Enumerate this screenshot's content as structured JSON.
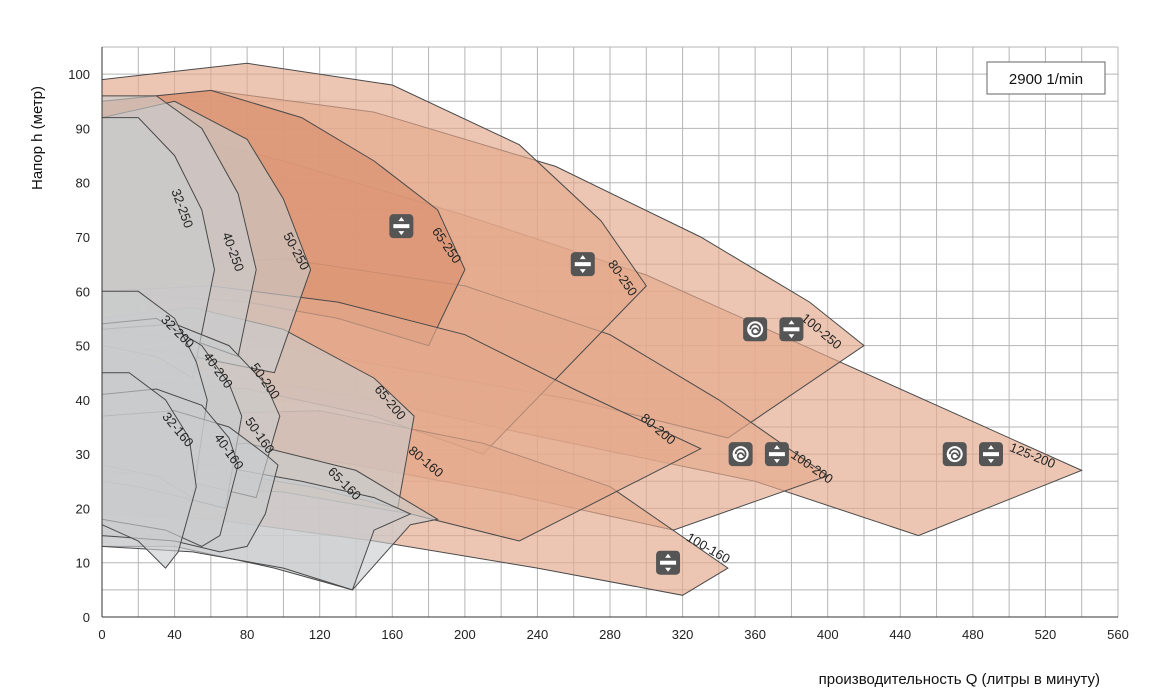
{
  "chart_data": {
    "type": "area",
    "xlabel": "производительность Q (литры в минуту)",
    "ylabel": "Напор h (метр)",
    "xlim": [
      0,
      560
    ],
    "ylim": [
      0,
      105
    ],
    "x_ticks": [
      0,
      40,
      80,
      120,
      160,
      200,
      240,
      280,
      320,
      360,
      400,
      440,
      480,
      520,
      560
    ],
    "y_ticks": [
      0,
      10,
      20,
      30,
      40,
      50,
      60,
      70,
      80,
      90,
      100
    ],
    "grid": true,
    "speed_label": "2900 1/min",
    "colors": {
      "gray_region": "#c9cbcd",
      "copper_region": "#e3a88c",
      "copper_dark": "#d98f6e",
      "grid": "#b5b5b5",
      "outline": "#4a4a4a"
    },
    "regions": [
      {
        "name": "125-200",
        "color": "copper",
        "label_at": [
          512,
          29
        ],
        "label_angle": 22,
        "points": [
          [
            25,
            90
          ],
          [
            100,
            84
          ],
          [
            200,
            74
          ],
          [
            300,
            63
          ],
          [
            400,
            48
          ],
          [
            480,
            36
          ],
          [
            540,
            27
          ],
          [
            450,
            15
          ],
          [
            360,
            25
          ],
          [
            230,
            34
          ],
          [
            150,
            40
          ],
          [
            80,
            44
          ],
          [
            25,
            47
          ]
        ]
      },
      {
        "name": "100-250",
        "color": "copper",
        "label_at": [
          395,
          52
        ],
        "label_angle": 40,
        "points": [
          [
            0,
            95
          ],
          [
            60,
            97
          ],
          [
            150,
            93
          ],
          [
            250,
            83
          ],
          [
            330,
            70
          ],
          [
            390,
            58
          ],
          [
            420,
            50
          ],
          [
            345,
            33
          ],
          [
            260,
            40
          ],
          [
            160,
            46
          ],
          [
            80,
            51
          ],
          [
            0,
            52
          ]
        ]
      },
      {
        "name": "100-200",
        "color": "copper",
        "label_at": [
          390,
          27
        ],
        "label_angle": 35,
        "points": [
          [
            0,
            64
          ],
          [
            100,
            66
          ],
          [
            200,
            61
          ],
          [
            280,
            52
          ],
          [
            340,
            40
          ],
          [
            400,
            26
          ],
          [
            315,
            16
          ],
          [
            220,
            23
          ],
          [
            140,
            28
          ],
          [
            60,
            32
          ],
          [
            0,
            33
          ]
        ]
      },
      {
        "name": "80-250",
        "color": "copper",
        "label_at": [
          285,
          62
        ],
        "label_angle": 55,
        "points": [
          [
            0,
            99
          ],
          [
            80,
            102
          ],
          [
            160,
            98
          ],
          [
            230,
            87
          ],
          [
            275,
            73
          ],
          [
            300,
            61
          ],
          [
            210,
            30
          ],
          [
            150,
            37
          ],
          [
            80,
            42
          ],
          [
            0,
            44
          ]
        ]
      },
      {
        "name": "100-160",
        "color": "copper",
        "label_at": [
          333,
          12
        ],
        "label_angle": 30,
        "points": [
          [
            0,
            37
          ],
          [
            120,
            38
          ],
          [
            210,
            32
          ],
          [
            280,
            24
          ],
          [
            345,
            9
          ],
          [
            320,
            4
          ],
          [
            240,
            9
          ],
          [
            150,
            14
          ],
          [
            60,
            18
          ],
          [
            0,
            19
          ]
        ]
      },
      {
        "name": "65-250",
        "color": "copper_dark",
        "label_at": [
          188,
          68
        ],
        "label_angle": 55,
        "points": [
          [
            0,
            95
          ],
          [
            60,
            97
          ],
          [
            110,
            92
          ],
          [
            150,
            84
          ],
          [
            185,
            75
          ],
          [
            200,
            64
          ],
          [
            180,
            50
          ],
          [
            130,
            55
          ],
          [
            80,
            58
          ],
          [
            0,
            60
          ]
        ]
      },
      {
        "name": "80-200",
        "color": "copper",
        "label_at": [
          305,
          34
        ],
        "label_angle": 40,
        "points": [
          [
            0,
            60
          ],
          [
            60,
            61
          ],
          [
            130,
            58
          ],
          [
            200,
            52
          ],
          [
            260,
            42
          ],
          [
            330,
            31
          ],
          [
            230,
            14
          ],
          [
            170,
            19
          ],
          [
            100,
            23
          ],
          [
            0,
            25
          ]
        ]
      },
      {
        "name": "65-200",
        "color": "gray",
        "label_at": [
          157,
          39
        ],
        "label_angle": 50,
        "points": [
          [
            0,
            55
          ],
          [
            50,
            57
          ],
          [
            100,
            53
          ],
          [
            150,
            44
          ],
          [
            172,
            37
          ],
          [
            163,
            20
          ],
          [
            115,
            24
          ],
          [
            60,
            27
          ],
          [
            0,
            28
          ]
        ]
      },
      {
        "name": "50-250",
        "color": "gray",
        "label_at": [
          105,
          67
        ],
        "label_angle": 62,
        "points": [
          [
            0,
            92
          ],
          [
            40,
            95
          ],
          [
            80,
            88
          ],
          [
            100,
            77
          ],
          [
            115,
            64
          ],
          [
            95,
            45
          ],
          [
            65,
            47
          ],
          [
            35,
            49
          ],
          [
            0,
            50
          ]
        ]
      },
      {
        "name": "80-160",
        "color": "gray",
        "label_at": [
          177,
          28
        ],
        "label_angle": 40,
        "points": [
          [
            0,
            30
          ],
          [
            80,
            32
          ],
          [
            140,
            27
          ],
          [
            185,
            18
          ],
          [
            170,
            17
          ],
          [
            138,
            5
          ],
          [
            95,
            9
          ],
          [
            40,
            13
          ],
          [
            0,
            13
          ]
        ]
      },
      {
        "name": "65-160",
        "color": "gray",
        "label_at": [
          132,
          24
        ],
        "label_angle": 45,
        "points": [
          [
            0,
            26
          ],
          [
            60,
            28
          ],
          [
            110,
            25
          ],
          [
            150,
            22
          ],
          [
            170,
            19
          ],
          [
            150,
            16
          ],
          [
            138,
            5
          ],
          [
            100,
            9
          ],
          [
            50,
            12
          ],
          [
            0,
            13
          ]
        ]
      },
      {
        "name": "40-250",
        "color": "gray",
        "label_at": [
          70,
          67
        ],
        "label_angle": 70,
        "points": [
          [
            0,
            96
          ],
          [
            30,
            96
          ],
          [
            55,
            90
          ],
          [
            75,
            78
          ],
          [
            85,
            64
          ],
          [
            75,
            48
          ],
          [
            50,
            51
          ],
          [
            25,
            52
          ],
          [
            0,
            53
          ]
        ]
      },
      {
        "name": "32-250",
        "color": "gray",
        "label_at": [
          42,
          75
        ],
        "label_angle": 70,
        "points": [
          [
            0,
            92
          ],
          [
            20,
            92
          ],
          [
            40,
            85
          ],
          [
            55,
            75
          ],
          [
            62,
            64
          ],
          [
            50,
            44
          ],
          [
            30,
            48
          ],
          [
            0,
            50
          ]
        ]
      },
      {
        "name": "50-200",
        "color": "gray",
        "label_at": [
          88,
          43
        ],
        "label_angle": 55,
        "points": [
          [
            0,
            53
          ],
          [
            40,
            54
          ],
          [
            70,
            50
          ],
          [
            90,
            43
          ],
          [
            98,
            37
          ],
          [
            85,
            22
          ],
          [
            60,
            24
          ],
          [
            30,
            26
          ],
          [
            0,
            27
          ]
        ]
      },
      {
        "name": "40-200",
        "color": "gray",
        "label_at": [
          62,
          45
        ],
        "label_angle": 55,
        "points": [
          [
            0,
            54
          ],
          [
            30,
            55
          ],
          [
            55,
            50
          ],
          [
            70,
            43
          ],
          [
            77,
            37
          ],
          [
            68,
            20
          ],
          [
            45,
            22
          ],
          [
            20,
            24
          ],
          [
            0,
            25
          ]
        ]
      },
      {
        "name": "32-200",
        "color": "gray",
        "label_at": [
          40,
          52
        ],
        "label_angle": 45,
        "points": [
          [
            0,
            60
          ],
          [
            20,
            60
          ],
          [
            40,
            55
          ],
          [
            52,
            47
          ],
          [
            58,
            40
          ],
          [
            50,
            22
          ],
          [
            30,
            26
          ],
          [
            0,
            28
          ]
        ]
      },
      {
        "name": "50-160",
        "color": "gray",
        "label_at": [
          85,
          33
        ],
        "label_angle": 55,
        "points": [
          [
            0,
            37
          ],
          [
            40,
            38
          ],
          [
            70,
            35
          ],
          [
            90,
            30
          ],
          [
            97,
            28
          ],
          [
            90,
            19
          ],
          [
            80,
            13
          ],
          [
            65,
            12
          ],
          [
            40,
            14
          ],
          [
            0,
            15
          ]
        ]
      },
      {
        "name": "40-160",
        "color": "gray",
        "label_at": [
          68,
          30
        ],
        "label_angle": 55,
        "points": [
          [
            0,
            41
          ],
          [
            30,
            42
          ],
          [
            55,
            39
          ],
          [
            70,
            33
          ],
          [
            75,
            28
          ],
          [
            65,
            15
          ],
          [
            55,
            13
          ],
          [
            35,
            16
          ],
          [
            0,
            18
          ]
        ]
      },
      {
        "name": "32-160",
        "color": "gray",
        "label_at": [
          40,
          34
        ],
        "label_angle": 50,
        "points": [
          [
            0,
            45
          ],
          [
            15,
            45
          ],
          [
            35,
            40
          ],
          [
            48,
            33
          ],
          [
            52,
            24
          ],
          [
            42,
            12
          ],
          [
            35,
            9
          ],
          [
            20,
            14
          ],
          [
            0,
            17
          ]
        ]
      }
    ],
    "icons": [
      {
        "name": "inline-pump-icon",
        "x": 165,
        "y": 72
      },
      {
        "name": "inline-pump-icon",
        "x": 265,
        "y": 65
      },
      {
        "name": "volute-pump-icon",
        "x": 360,
        "y": 53
      },
      {
        "name": "inline-pump-icon",
        "x": 380,
        "y": 53
      },
      {
        "name": "volute-pump-icon",
        "x": 352,
        "y": 30
      },
      {
        "name": "inline-pump-icon",
        "x": 372,
        "y": 30
      },
      {
        "name": "volute-pump-icon",
        "x": 470,
        "y": 30
      },
      {
        "name": "inline-pump-icon",
        "x": 490,
        "y": 30
      },
      {
        "name": "inline-pump-icon",
        "x": 312,
        "y": 10
      }
    ]
  }
}
